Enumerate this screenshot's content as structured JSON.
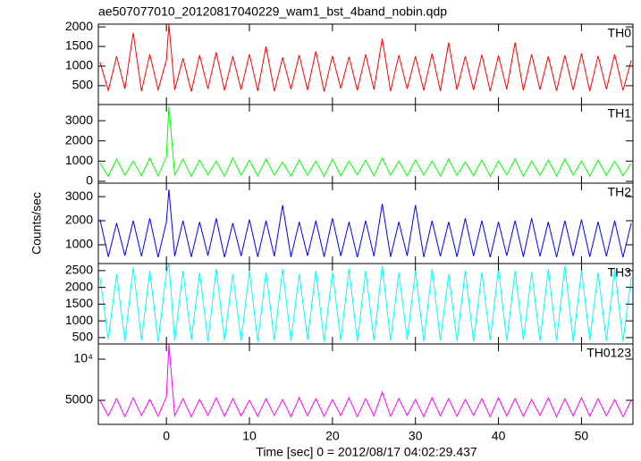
{
  "title": "ae507077010_20120817040229_wam1_bst_4band_nobin.qdp",
  "x_label": "Time [sec] 0 = 2012/08/17 04:02:29.437",
  "y_label": "Counts/sec",
  "chart_data": [
    {
      "type": "line",
      "label": "TH0",
      "color": "#ff0000",
      "x": [
        -8,
        -7,
        -6,
        -5,
        -4,
        -3,
        -2,
        -1,
        0,
        0.3,
        1,
        2,
        3,
        4,
        5,
        6,
        7,
        8,
        9,
        10,
        11,
        12,
        13,
        14,
        15,
        16,
        17,
        18,
        19,
        20,
        21,
        22,
        23,
        24,
        25,
        26,
        27,
        28,
        29,
        30,
        31,
        32,
        33,
        34,
        35,
        36,
        37,
        38,
        39,
        40,
        41,
        42,
        43,
        44,
        45,
        46,
        47,
        48,
        49,
        50,
        51,
        52,
        53,
        54,
        55,
        56
      ],
      "values": [
        1100,
        380,
        1250,
        420,
        1850,
        360,
        1300,
        400,
        1150,
        2060,
        390,
        1200,
        350,
        1280,
        420,
        1350,
        380,
        1250,
        400,
        1300,
        370,
        1500,
        360,
        1220,
        410,
        1280,
        390,
        1380,
        350,
        1260,
        430,
        1240,
        380,
        1300,
        400,
        1700,
        360,
        1280,
        420,
        1250,
        380,
        1320,
        370,
        1600,
        400,
        1250,
        390,
        1290,
        360,
        1270,
        410,
        1600,
        380,
        1300,
        400,
        1250,
        370,
        1280,
        390,
        1320,
        360,
        1260,
        410,
        1300,
        380,
        1150
      ],
      "xlim": [
        -8.2,
        56.2
      ],
      "xticks": [
        0,
        10,
        20,
        30,
        40,
        50
      ],
      "ylim": [
        20,
        2070
      ],
      "yticks": [
        500,
        1000,
        1500,
        2000
      ]
    },
    {
      "type": "line",
      "label": "TH1",
      "color": "#00ff00",
      "x": [
        -8,
        -7,
        -6,
        -5,
        -4,
        -3,
        -2,
        -1,
        0,
        0.3,
        1,
        2,
        3,
        4,
        5,
        6,
        7,
        8,
        9,
        10,
        11,
        12,
        13,
        14,
        15,
        16,
        17,
        18,
        19,
        20,
        21,
        22,
        23,
        24,
        25,
        26,
        27,
        28,
        29,
        30,
        31,
        32,
        33,
        34,
        35,
        36,
        37,
        38,
        39,
        40,
        41,
        42,
        43,
        44,
        45,
        46,
        47,
        48,
        49,
        50,
        51,
        52,
        53,
        54,
        55,
        56
      ],
      "values": [
        900,
        250,
        1100,
        300,
        1000,
        280,
        1150,
        260,
        1200,
        3700,
        300,
        1100,
        250,
        1050,
        320,
        1000,
        260,
        1150,
        300,
        1050,
        270,
        1100,
        310,
        950,
        260,
        1050,
        300,
        1000,
        250,
        1100,
        280,
        1000,
        320,
        1050,
        260,
        1150,
        300,
        1000,
        270,
        1050,
        310,
        1000,
        260,
        1100,
        300,
        950,
        280,
        1050,
        250,
        1000,
        320,
        1100,
        260,
        1000,
        300,
        1050,
        270,
        1100,
        310,
        1000,
        260,
        1050,
        300,
        1000,
        280,
        900
      ],
      "xlim": [
        -8.2,
        56.2
      ],
      "xticks": [
        0,
        10,
        20,
        30,
        40,
        50
      ],
      "ylim": [
        -90,
        3800
      ],
      "yticks": [
        0,
        1000,
        2000,
        3000
      ]
    },
    {
      "type": "line",
      "label": "TH2",
      "color": "#0000ff",
      "x": [
        -8,
        -7,
        -6,
        -5,
        -4,
        -3,
        -2,
        -1,
        0,
        0.3,
        1,
        2,
        3,
        4,
        5,
        6,
        7,
        8,
        9,
        10,
        11,
        12,
        13,
        14,
        15,
        16,
        17,
        18,
        19,
        20,
        21,
        22,
        23,
        24,
        25,
        26,
        27,
        28,
        29,
        30,
        31,
        32,
        33,
        34,
        35,
        36,
        37,
        38,
        39,
        40,
        41,
        42,
        43,
        44,
        45,
        46,
        47,
        48,
        49,
        50,
        51,
        52,
        53,
        54,
        55,
        56
      ],
      "values": [
        2050,
        500,
        1900,
        550,
        2000,
        520,
        2100,
        480,
        1950,
        3300,
        520,
        2000,
        500,
        1950,
        550,
        2100,
        480,
        1900,
        530,
        2050,
        500,
        2000,
        520,
        2650,
        490,
        1950,
        540,
        2000,
        500,
        2100,
        530,
        1950,
        480,
        2000,
        520,
        2700,
        500,
        1950,
        540,
        2650,
        490,
        2000,
        520,
        1950,
        500,
        2100,
        530,
        2000,
        480,
        1950,
        540,
        2000,
        500,
        2100,
        520,
        1950,
        490,
        2000,
        530,
        2050,
        500,
        1950,
        520,
        2000,
        480,
        1900
      ],
      "xlim": [
        -8.2,
        56.2
      ],
      "xticks": [
        0,
        10,
        20,
        30,
        40,
        50
      ],
      "ylim": [
        220,
        3560
      ],
      "yticks": [
        1000,
        2000,
        3000
      ]
    },
    {
      "type": "line",
      "label": "TH3",
      "color": "#00ffff",
      "x": [
        -8,
        -7,
        -6,
        -5,
        -4,
        -3,
        -2,
        -1,
        0,
        0.3,
        1,
        2,
        3,
        4,
        5,
        6,
        7,
        8,
        9,
        10,
        11,
        12,
        13,
        14,
        15,
        16,
        17,
        18,
        19,
        20,
        21,
        22,
        23,
        24,
        25,
        26,
        27,
        28,
        29,
        30,
        31,
        32,
        33,
        34,
        35,
        36,
        37,
        38,
        39,
        40,
        41,
        42,
        43,
        44,
        45,
        46,
        47,
        48,
        49,
        50,
        51,
        52,
        53,
        54,
        55,
        56
      ],
      "values": [
        2300,
        450,
        2400,
        400,
        2600,
        420,
        2500,
        380,
        2450,
        2700,
        400,
        2500,
        430,
        2450,
        390,
        2550,
        420,
        2400,
        400,
        2500,
        380,
        2450,
        420,
        2550,
        400,
        2400,
        430,
        2500,
        390,
        2450,
        410,
        2550,
        380,
        2500,
        420,
        2650,
        400,
        2450,
        430,
        2500,
        390,
        2550,
        420,
        2400,
        400,
        2500,
        380,
        2450,
        420,
        2550,
        400,
        2500,
        430,
        2450,
        390,
        2550,
        410,
        2650,
        380,
        2500,
        420,
        2450,
        400,
        2550,
        390,
        2300
      ],
      "xlim": [
        -8.2,
        56.2
      ],
      "xticks": [
        0,
        10,
        20,
        30,
        40,
        50
      ],
      "ylim": [
        310,
        2710
      ],
      "yticks": [
        500,
        1000,
        1500,
        2000,
        2500
      ]
    },
    {
      "type": "line",
      "label": "TH0123",
      "color": "#ff00ff",
      "x": [
        -8,
        -7,
        -6,
        -5,
        -4,
        -3,
        -2,
        -1,
        0,
        0.3,
        1,
        2,
        3,
        4,
        5,
        6,
        7,
        8,
        9,
        10,
        11,
        12,
        13,
        14,
        15,
        16,
        17,
        18,
        19,
        20,
        21,
        22,
        23,
        24,
        25,
        26,
        27,
        28,
        29,
        30,
        31,
        32,
        33,
        34,
        35,
        36,
        37,
        38,
        39,
        40,
        41,
        42,
        43,
        44,
        45,
        46,
        47,
        48,
        49,
        50,
        51,
        52,
        53,
        54,
        55,
        56
      ],
      "values": [
        5000,
        3100,
        5200,
        3000,
        5300,
        3150,
        5100,
        3050,
        5400,
        11800,
        3100,
        5200,
        3000,
        5100,
        3150,
        5300,
        3050,
        5200,
        3100,
        5000,
        3050,
        5200,
        3150,
        5100,
        3000,
        5300,
        3100,
        5200,
        3050,
        5100,
        3150,
        5300,
        3000,
        5200,
        3100,
        6000,
        3050,
        5200,
        3150,
        5100,
        3000,
        5300,
        3100,
        5200,
        3050,
        5100,
        3150,
        5200,
        3000,
        5300,
        3100,
        5200,
        3050,
        5100,
        3150,
        5300,
        3000,
        5200,
        3100,
        5300,
        3050,
        5200,
        3100,
        5100,
        3000,
        5000
      ],
      "xlim": [
        -8.2,
        56.2
      ],
      "xticks": [
        0,
        10,
        20,
        30,
        40,
        50
      ],
      "ylim": [
        2070,
        11850
      ],
      "yticks": [
        5000,
        {
          "value": 10000,
          "label": "10⁴"
        }
      ]
    }
  ]
}
